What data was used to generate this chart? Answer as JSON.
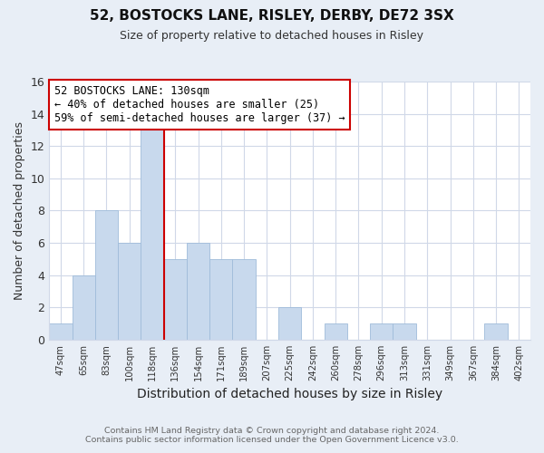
{
  "title": "52, BOSTOCKS LANE, RISLEY, DERBY, DE72 3SX",
  "subtitle": "Size of property relative to detached houses in Risley",
  "xlabel": "Distribution of detached houses by size in Risley",
  "ylabel": "Number of detached properties",
  "footer_line1": "Contains HM Land Registry data © Crown copyright and database right 2024.",
  "footer_line2": "Contains public sector information licensed under the Open Government Licence v3.0.",
  "annotation_line1": "52 BOSTOCKS LANE: 130sqm",
  "annotation_line2": "← 40% of detached houses are smaller (25)",
  "annotation_line3": "59% of semi-detached houses are larger (37) →",
  "bar_labels": [
    "47sqm",
    "65sqm",
    "83sqm",
    "100sqm",
    "118sqm",
    "136sqm",
    "154sqm",
    "171sqm",
    "189sqm",
    "207sqm",
    "225sqm",
    "242sqm",
    "260sqm",
    "278sqm",
    "296sqm",
    "313sqm",
    "331sqm",
    "349sqm",
    "367sqm",
    "384sqm",
    "402sqm"
  ],
  "bar_values": [
    1,
    4,
    8,
    6,
    13,
    5,
    6,
    5,
    5,
    0,
    2,
    0,
    1,
    0,
    1,
    1,
    0,
    0,
    0,
    1,
    0
  ],
  "bar_color": "#c8d9ed",
  "bar_edgecolor": "#9fbcda",
  "vline_x": 5,
  "vline_color": "#cc0000",
  "ylim": [
    0,
    16
  ],
  "yticks": [
    0,
    2,
    4,
    6,
    8,
    10,
    12,
    14,
    16
  ],
  "annotation_box_edgecolor": "#cc0000",
  "bg_color": "#e8eef6",
  "plot_bg_color": "#ffffff",
  "grid_color": "#d0d8e8",
  "title_fontsize": 11,
  "subtitle_fontsize": 9
}
